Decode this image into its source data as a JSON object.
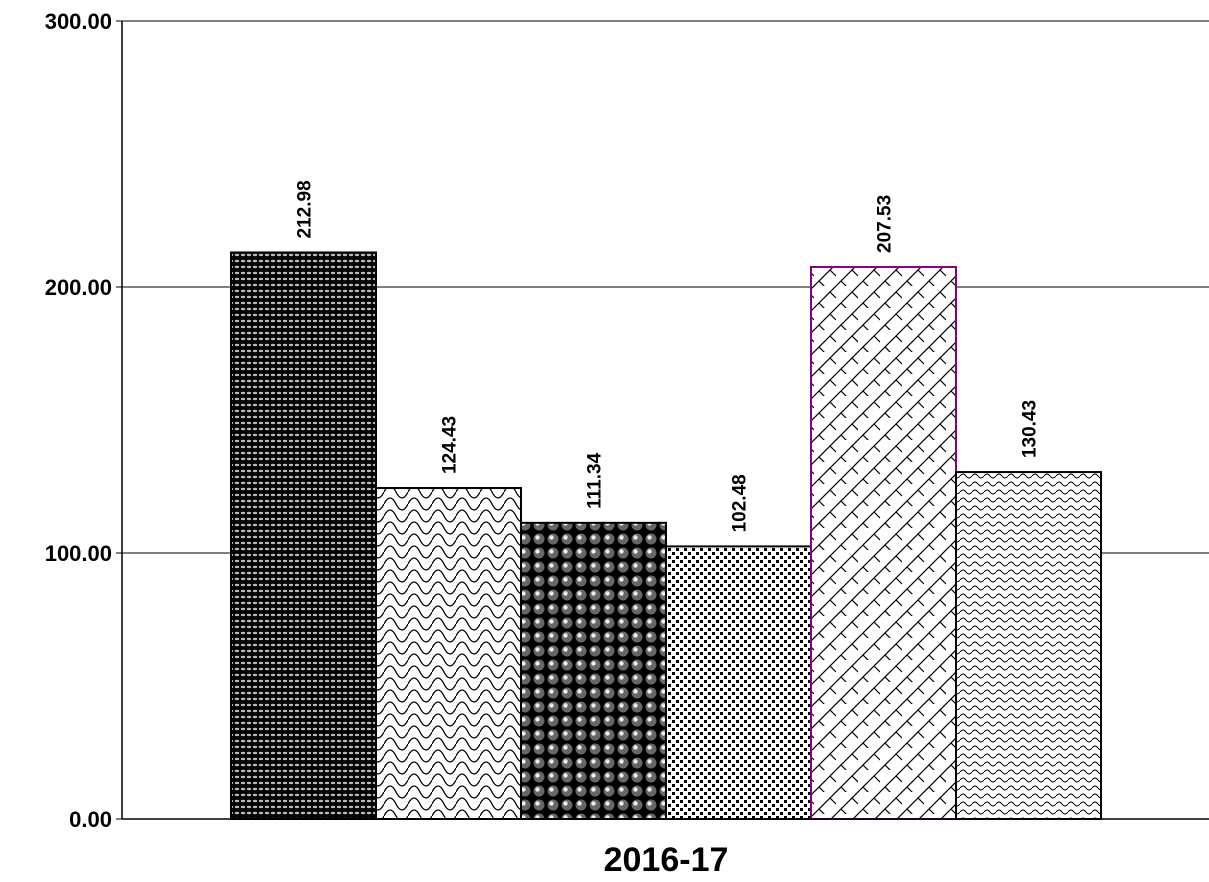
{
  "chart_data": {
    "type": "bar",
    "categories": [
      "2016-17"
    ],
    "series": [
      {
        "values": [
          212.98
        ],
        "pattern": "dense-dots-dark",
        "border": "#000000"
      },
      {
        "values": [
          124.43
        ],
        "pattern": "scales",
        "border": "#000000"
      },
      {
        "values": [
          111.34
        ],
        "pattern": "spheres",
        "border": "#000000"
      },
      {
        "values": [
          102.48
        ],
        "pattern": "dots",
        "border": "#000000"
      },
      {
        "values": [
          207.53
        ],
        "pattern": "brick-diagonal",
        "border": "#800080"
      },
      {
        "values": [
          130.43
        ],
        "pattern": "waves",
        "border": "#000000"
      }
    ],
    "y_ticks": [
      "0.00",
      "100.00",
      "200.00",
      "300.00"
    ],
    "data_labels": [
      "212.98",
      "124.43",
      "111.34",
      "102.48",
      "207.53",
      "130.43"
    ],
    "ylim": [
      0,
      300
    ],
    "grid": true,
    "legend": "none"
  }
}
